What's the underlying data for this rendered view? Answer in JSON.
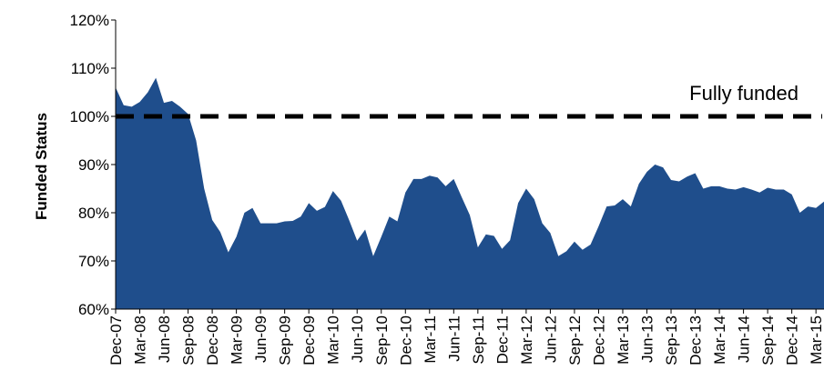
{
  "chart_data": {
    "type": "area",
    "ylabel": "Funded Status",
    "xlabel": "",
    "y_tick_labels": [
      "60%",
      "70%",
      "80%",
      "90%",
      "100%",
      "110%",
      "120%"
    ],
    "ylim": [
      60,
      120
    ],
    "x_tick_labels": [
      "Dec-07",
      "Mar-08",
      "Jun-08",
      "Sep-08",
      "Dec-08",
      "Mar-09",
      "Jun-09",
      "Sep-09",
      "Dec-09",
      "Mar-10",
      "Jun-10",
      "Sep-10",
      "Dec-10",
      "Mar-11",
      "Jun-11",
      "Sep-11",
      "Dec-11",
      "Mar-12",
      "Jun-12",
      "Sep-12",
      "Dec-12",
      "Mar-13",
      "Jun-13",
      "Sep-13",
      "Dec-13",
      "Mar-14",
      "Jun-14",
      "Sep-14",
      "Dec-14",
      "Mar-15"
    ],
    "x": [
      "Dec-07",
      "Jan-08",
      "Feb-08",
      "Mar-08",
      "Apr-08",
      "May-08",
      "Jun-08",
      "Jul-08",
      "Aug-08",
      "Sep-08",
      "Oct-08",
      "Nov-08",
      "Dec-08",
      "Jan-09",
      "Feb-09",
      "Mar-09",
      "Apr-09",
      "May-09",
      "Jun-09",
      "Jul-09",
      "Aug-09",
      "Sep-09",
      "Oct-09",
      "Nov-09",
      "Dec-09",
      "Jan-10",
      "Feb-10",
      "Mar-10",
      "Apr-10",
      "May-10",
      "Jun-10",
      "Jul-10",
      "Aug-10",
      "Sep-10",
      "Oct-10",
      "Nov-10",
      "Dec-10",
      "Jan-11",
      "Feb-11",
      "Mar-11",
      "Apr-11",
      "May-11",
      "Jun-11",
      "Jul-11",
      "Aug-11",
      "Sep-11",
      "Oct-11",
      "Nov-11",
      "Dec-11",
      "Jan-12",
      "Feb-12",
      "Mar-12",
      "Apr-12",
      "May-12",
      "Jun-12",
      "Jul-12",
      "Aug-12",
      "Sep-12",
      "Oct-12",
      "Nov-12",
      "Dec-12",
      "Jan-13",
      "Feb-13",
      "Mar-13",
      "Apr-13",
      "May-13",
      "Jun-13",
      "Jul-13",
      "Aug-13",
      "Sep-13",
      "Oct-13",
      "Nov-13",
      "Dec-13",
      "Jan-14",
      "Feb-14",
      "Mar-14",
      "Apr-14",
      "May-14",
      "Jun-14",
      "Jul-14",
      "Aug-14",
      "Sep-14",
      "Oct-14",
      "Nov-14",
      "Dec-14",
      "Jan-15",
      "Feb-15",
      "Mar-15",
      "Apr-15"
    ],
    "series": [
      {
        "values": [
          106,
          102.3,
          102,
          103,
          105,
          108,
          102.8,
          103.2,
          102,
          100.5,
          95,
          85,
          78.5,
          76,
          71.8,
          75,
          80,
          81,
          77.8,
          77.8,
          77.8,
          78.2,
          78.3,
          79.2,
          82,
          80.4,
          81.2,
          84.5,
          82.5,
          78.5,
          74.2,
          76.5,
          71,
          75,
          79.2,
          78.2,
          84.2,
          87,
          87,
          87.7,
          87.3,
          85.5,
          87,
          83.2,
          79.5,
          72.8,
          75.5,
          75.2,
          72.5,
          74.3,
          82,
          85,
          82.8,
          77.8,
          75.8,
          71,
          72,
          74,
          72.3,
          73.4,
          77.2,
          81.3,
          81.5,
          82.8,
          81.3,
          86,
          88.5,
          90,
          89.4,
          86.8,
          86.5,
          87.5,
          88.2,
          85,
          85.5,
          85.5,
          85,
          84.8,
          85.3,
          84.8,
          84.2,
          85.2,
          84.8,
          84.8,
          83.8,
          80,
          81.3,
          81,
          82.3
        ],
        "color": "#1f4e8c"
      }
    ],
    "reference_line": {
      "value": 100,
      "label": "Fully funded",
      "style": "dashed",
      "color": "#000000"
    },
    "grid": false,
    "legend": "none"
  }
}
